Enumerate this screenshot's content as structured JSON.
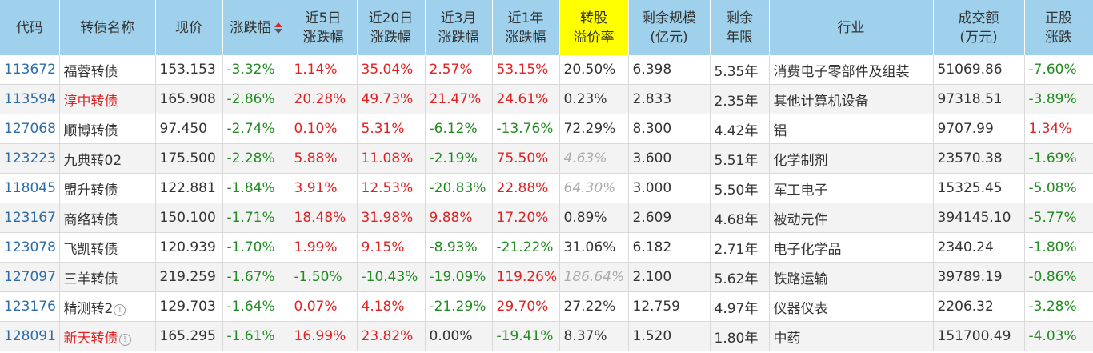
{
  "headers": [
    {
      "l1": "代码",
      "l2": ""
    },
    {
      "l1": "转债名称",
      "l2": ""
    },
    {
      "l1": "现价",
      "l2": ""
    },
    {
      "l1": "涨跌幅",
      "l2": ""
    },
    {
      "l1": "近5日",
      "l2": "涨跌幅"
    },
    {
      "l1": "近20日",
      "l2": "涨跌幅"
    },
    {
      "l1": "近3月",
      "l2": "涨跌幅"
    },
    {
      "l1": "近1年",
      "l2": "涨跌幅"
    },
    {
      "l1": "转股",
      "l2": "溢价率"
    },
    {
      "l1": "剩余规模",
      "l2": "(亿元)"
    },
    {
      "l1": "剩余",
      "l2": "年限"
    },
    {
      "l1": "行业",
      "l2": ""
    },
    {
      "l1": "成交额",
      "l2": "(万元)"
    },
    {
      "l1": "正股",
      "l2": "涨跌"
    }
  ],
  "rows": [
    {
      "code": "113672",
      "name": "福蓉转债",
      "name_color": "normal",
      "info": false,
      "price": "153.153",
      "chg": "-3.32%",
      "chg5": "1.14%",
      "chg20": "35.04%",
      "chg3m": "2.57%",
      "chg1y": "53.15%",
      "premium": "20.50%",
      "premium_style": "normal",
      "scale": "6.398",
      "years": "5.35年",
      "industry": "消费电子零部件及组装",
      "amount": "51069.86",
      "stock_chg": "-7.60%"
    },
    {
      "code": "113594",
      "name": "淳中转债",
      "name_color": "red",
      "info": false,
      "price": "165.908",
      "chg": "-2.86%",
      "chg5": "20.28%",
      "chg20": "49.73%",
      "chg3m": "21.47%",
      "chg1y": "24.61%",
      "premium": "0.23%",
      "premium_style": "normal",
      "scale": "2.833",
      "years": "2.35年",
      "industry": "其他计算机设备",
      "amount": "97318.51",
      "stock_chg": "-3.89%"
    },
    {
      "code": "127068",
      "name": "顺博转债",
      "name_color": "normal",
      "info": false,
      "price": "97.450",
      "chg": "-2.74%",
      "chg5": "0.10%",
      "chg20": "5.31%",
      "chg3m": "-6.12%",
      "chg1y": "-13.76%",
      "premium": "72.29%",
      "premium_style": "normal",
      "scale": "8.300",
      "years": "4.42年",
      "industry": "铝",
      "amount": "9707.99",
      "stock_chg": "1.34%"
    },
    {
      "code": "123223",
      "name": "九典转02",
      "name_color": "normal",
      "info": false,
      "price": "175.500",
      "chg": "-2.28%",
      "chg5": "5.88%",
      "chg20": "11.08%",
      "chg3m": "-2.19%",
      "chg1y": "75.50%",
      "premium": "4.63%",
      "premium_style": "gray",
      "scale": "3.600",
      "years": "5.51年",
      "industry": "化学制剂",
      "amount": "23570.38",
      "stock_chg": "-1.69%"
    },
    {
      "code": "118045",
      "name": "盟升转债",
      "name_color": "normal",
      "info": false,
      "price": "122.881",
      "chg": "-1.84%",
      "chg5": "3.91%",
      "chg20": "12.53%",
      "chg3m": "-20.83%",
      "chg1y": "22.88%",
      "premium": "64.30%",
      "premium_style": "gray",
      "scale": "3.000",
      "years": "5.50年",
      "industry": "军工电子",
      "amount": "15325.45",
      "stock_chg": "-5.08%"
    },
    {
      "code": "123167",
      "name": "商络转债",
      "name_color": "normal",
      "info": false,
      "price": "150.100",
      "chg": "-1.71%",
      "chg5": "18.48%",
      "chg20": "31.98%",
      "chg3m": "9.88%",
      "chg1y": "17.20%",
      "premium": "0.89%",
      "premium_style": "normal",
      "scale": "2.609",
      "years": "4.68年",
      "industry": "被动元件",
      "amount": "394145.10",
      "stock_chg": "-5.77%"
    },
    {
      "code": "123078",
      "name": "飞凯转债",
      "name_color": "normal",
      "info": false,
      "price": "120.939",
      "chg": "-1.70%",
      "chg5": "1.99%",
      "chg20": "9.15%",
      "chg3m": "-8.93%",
      "chg1y": "-21.22%",
      "premium": "31.06%",
      "premium_style": "normal",
      "scale": "6.182",
      "years": "2.71年",
      "industry": "电子化学品",
      "amount": "2340.24",
      "stock_chg": "-1.80%"
    },
    {
      "code": "127097",
      "name": "三羊转债",
      "name_color": "normal",
      "info": false,
      "price": "219.259",
      "chg": "-1.67%",
      "chg5": "-1.50%",
      "chg20": "-10.43%",
      "chg3m": "-19.09%",
      "chg1y": "119.26%",
      "premium": "186.64%",
      "premium_style": "gray",
      "scale": "2.100",
      "years": "5.62年",
      "industry": "铁路运输",
      "amount": "39789.19",
      "stock_chg": "-0.86%"
    },
    {
      "code": "123176",
      "name": "精测转2",
      "name_color": "normal",
      "info": true,
      "price": "129.703",
      "chg": "-1.64%",
      "chg5": "0.07%",
      "chg20": "4.18%",
      "chg3m": "-21.29%",
      "chg1y": "29.70%",
      "premium": "27.22%",
      "premium_style": "normal",
      "scale": "12.759",
      "years": "4.97年",
      "industry": "仪器仪表",
      "amount": "2206.32",
      "stock_chg": "-3.28%"
    },
    {
      "code": "128091",
      "name": "新天转债",
      "name_color": "red",
      "info": true,
      "price": "165.295",
      "chg": "-1.61%",
      "chg5": "16.99%",
      "chg20": "23.82%",
      "chg3m": "0.00%",
      "chg1y": "-19.41%",
      "premium": "8.37%",
      "premium_style": "normal",
      "scale": "1.520",
      "years": "1.80年",
      "industry": "中药",
      "amount": "151700.49",
      "stock_chg": "-4.03%"
    }
  ],
  "info_glyph": "!",
  "colors": {
    "header_bg": "#9fd1ec",
    "highlight": "#ffff00",
    "up": "#e02222",
    "down": "#228b22",
    "code": "#2d6ca8"
  }
}
